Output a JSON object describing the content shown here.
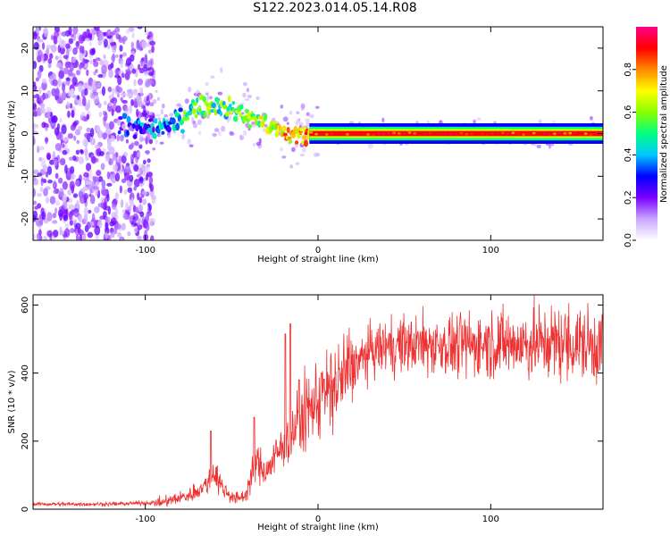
{
  "title": "S122.2023.014.05.14.R08",
  "chart_data": [
    {
      "type": "heatmap",
      "xlabel": "Height of straight line (km)",
      "ylabel": "Frequency (Hz)",
      "xlim": [
        -165,
        165
      ],
      "ylim": [
        -25,
        25
      ],
      "x_ticks": [
        -100,
        0,
        100
      ],
      "y_ticks": [
        -20,
        -10,
        0,
        10,
        20
      ],
      "colorbar": {
        "label": "Normalized spectral amplitude",
        "ticks": [
          "0.0",
          "0.2",
          "0.4",
          "0.6",
          "0.8"
        ],
        "range": [
          0,
          1
        ],
        "colors": [
          "#ffffff",
          "#c9a6ff",
          "#7a00ff",
          "#0000ff",
          "#00c8ff",
          "#00ff80",
          "#88ff00",
          "#ffff00",
          "#ff8800",
          "#ff0000",
          "#ff0088"
        ]
      },
      "ridge": [
        {
          "x": -130,
          "y": 3,
          "a": 0.15
        },
        {
          "x": -100,
          "y": 1,
          "a": 0.3
        },
        {
          "x": -85,
          "y": 2,
          "a": 0.4
        },
        {
          "x": -75,
          "y": 5,
          "a": 0.5
        },
        {
          "x": -65,
          "y": 7,
          "a": 0.55
        },
        {
          "x": -55,
          "y": 6,
          "a": 0.5
        },
        {
          "x": -45,
          "y": 5,
          "a": 0.55
        },
        {
          "x": -35,
          "y": 3,
          "a": 0.6
        },
        {
          "x": -25,
          "y": 1,
          "a": 0.7
        },
        {
          "x": -15,
          "y": -1,
          "a": 0.75
        },
        {
          "x": -5,
          "y": 0,
          "a": 0.8
        },
        {
          "x": 10,
          "y": 0,
          "a": 0.9
        },
        {
          "x": 60,
          "y": 0,
          "a": 0.9
        },
        {
          "x": 110,
          "y": 0,
          "a": 0.88
        },
        {
          "x": 165,
          "y": 0,
          "a": 0.85
        }
      ]
    },
    {
      "type": "line",
      "xlabel": "Height of straight line (km)",
      "ylabel": "SNR (10 * v/v)",
      "xlim": [
        -165,
        165
      ],
      "ylim": [
        0,
        630
      ],
      "x_ticks": [
        -100,
        0,
        100
      ],
      "y_ticks": [
        0,
        200,
        400,
        600
      ],
      "color": "#ee3030",
      "trend": {
        "x": [
          -165,
          -120,
          -90,
          -75,
          -65,
          -60,
          -55,
          -48,
          -42,
          -36,
          -30,
          -24,
          -18,
          -12,
          -6,
          0,
          10,
          20,
          30,
          40,
          60,
          80,
          100,
          120,
          140,
          165
        ],
        "y": [
          15,
          15,
          20,
          40,
          70,
          110,
          60,
          30,
          40,
          140,
          110,
          160,
          200,
          250,
          290,
          320,
          360,
          420,
          460,
          480,
          485,
          480,
          490,
          485,
          490,
          480
        ]
      },
      "spikes": [
        {
          "x": -62,
          "y": 230
        },
        {
          "x": -37,
          "y": 270
        },
        {
          "x": -16,
          "y": 545
        },
        {
          "x": -19,
          "y": 515
        },
        {
          "x": -11,
          "y": 380
        },
        {
          "x": 2,
          "y": 400
        }
      ]
    }
  ]
}
